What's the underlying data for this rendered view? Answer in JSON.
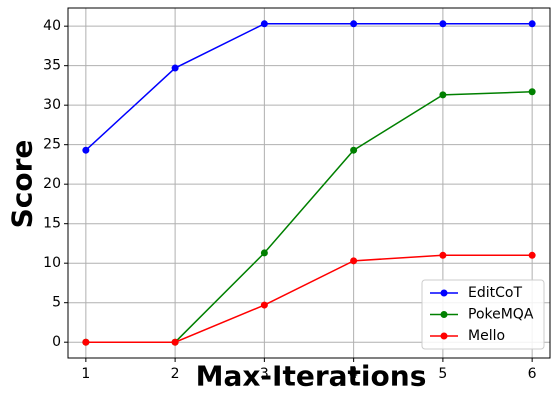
{
  "chart_data": {
    "type": "line",
    "xlabel": "Max-Iterations",
    "ylabel": "Score",
    "x": [
      1,
      2,
      3,
      4,
      5,
      6
    ],
    "xlim": [
      0.8,
      6.2
    ],
    "ylim": [
      -2,
      42.3
    ],
    "xticks": [
      1,
      2,
      3,
      4,
      5,
      6
    ],
    "yticks": [
      0,
      5,
      10,
      15,
      20,
      25,
      30,
      35,
      40
    ],
    "grid": true,
    "legend_position": "lower-right",
    "series": [
      {
        "name": "EditCoT",
        "color": "#0000ff",
        "values": [
          24.3,
          34.7,
          40.3,
          40.3,
          40.3,
          40.3
        ]
      },
      {
        "name": "PokeMQA",
        "color": "#008000",
        "values": [
          0.0,
          0.0,
          11.3,
          24.3,
          31.3,
          31.7
        ]
      },
      {
        "name": "Mello",
        "color": "#ff0000",
        "values": [
          0.0,
          0.0,
          4.7,
          10.3,
          11.0,
          11.0
        ]
      }
    ]
  }
}
